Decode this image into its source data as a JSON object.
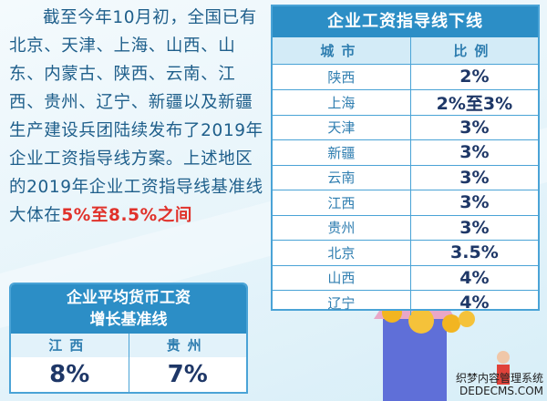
{
  "intro": {
    "text": "截至今年10月初，全国已有北京、天津、上海、山西、山东、内蒙古、陕西、云南、江西、贵州、辽宁、新疆以及新疆生产建设兵团陆续发布了2019年企业工资指导线方案。上述地区的2019年企业工资指导线基准线大体在",
    "highlight": "5%至8.5%之间"
  },
  "table": {
    "title": "企业工资指导线下线",
    "header": [
      "城市",
      "比例"
    ],
    "rows": [
      [
        "陕西",
        "2%"
      ],
      [
        "上海",
        "2%至3%"
      ],
      [
        "天津",
        "3%"
      ],
      [
        "新疆",
        "3%"
      ],
      [
        "云南",
        "3%"
      ],
      [
        "江西",
        "3%"
      ],
      [
        "贵州",
        "3%"
      ],
      [
        "北京",
        "3.5%"
      ],
      [
        "山西",
        "4%"
      ],
      [
        "辽宁",
        "4%"
      ]
    ]
  },
  "baseline": {
    "title_lines": [
      "企业平均货币工资",
      "增长基准线"
    ],
    "header": [
      "江西",
      "贵州"
    ],
    "values": [
      "8%",
      "7%"
    ]
  },
  "watermark": [
    "织梦内容管理系统",
    "DEDECMS.COM"
  ]
}
